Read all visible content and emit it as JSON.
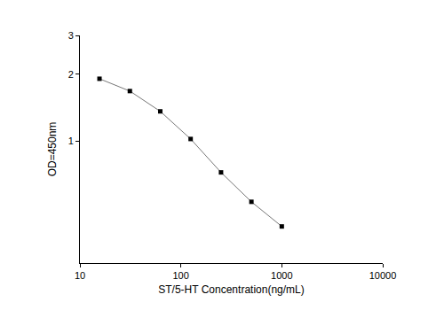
{
  "chart_data": {
    "type": "line",
    "x_label": "ST/5-HT Concentration(ng/mL)",
    "y_label": "OD=450nm",
    "x": [
      15.625,
      31.25,
      62.5,
      125,
      250,
      500,
      1000
    ],
    "values": [
      1.91,
      1.68,
      1.36,
      1.02,
      0.72,
      0.53,
      0.41
    ],
    "color": "#000000",
    "marker": "square",
    "log": true,
    "grid": false,
    "xlim": [
      10,
      10000
    ],
    "xticks": [
      10,
      100,
      1000,
      10000
    ],
    "ylim": [
      0.28,
      3
    ],
    "yticks": [
      1,
      2,
      3
    ]
  }
}
